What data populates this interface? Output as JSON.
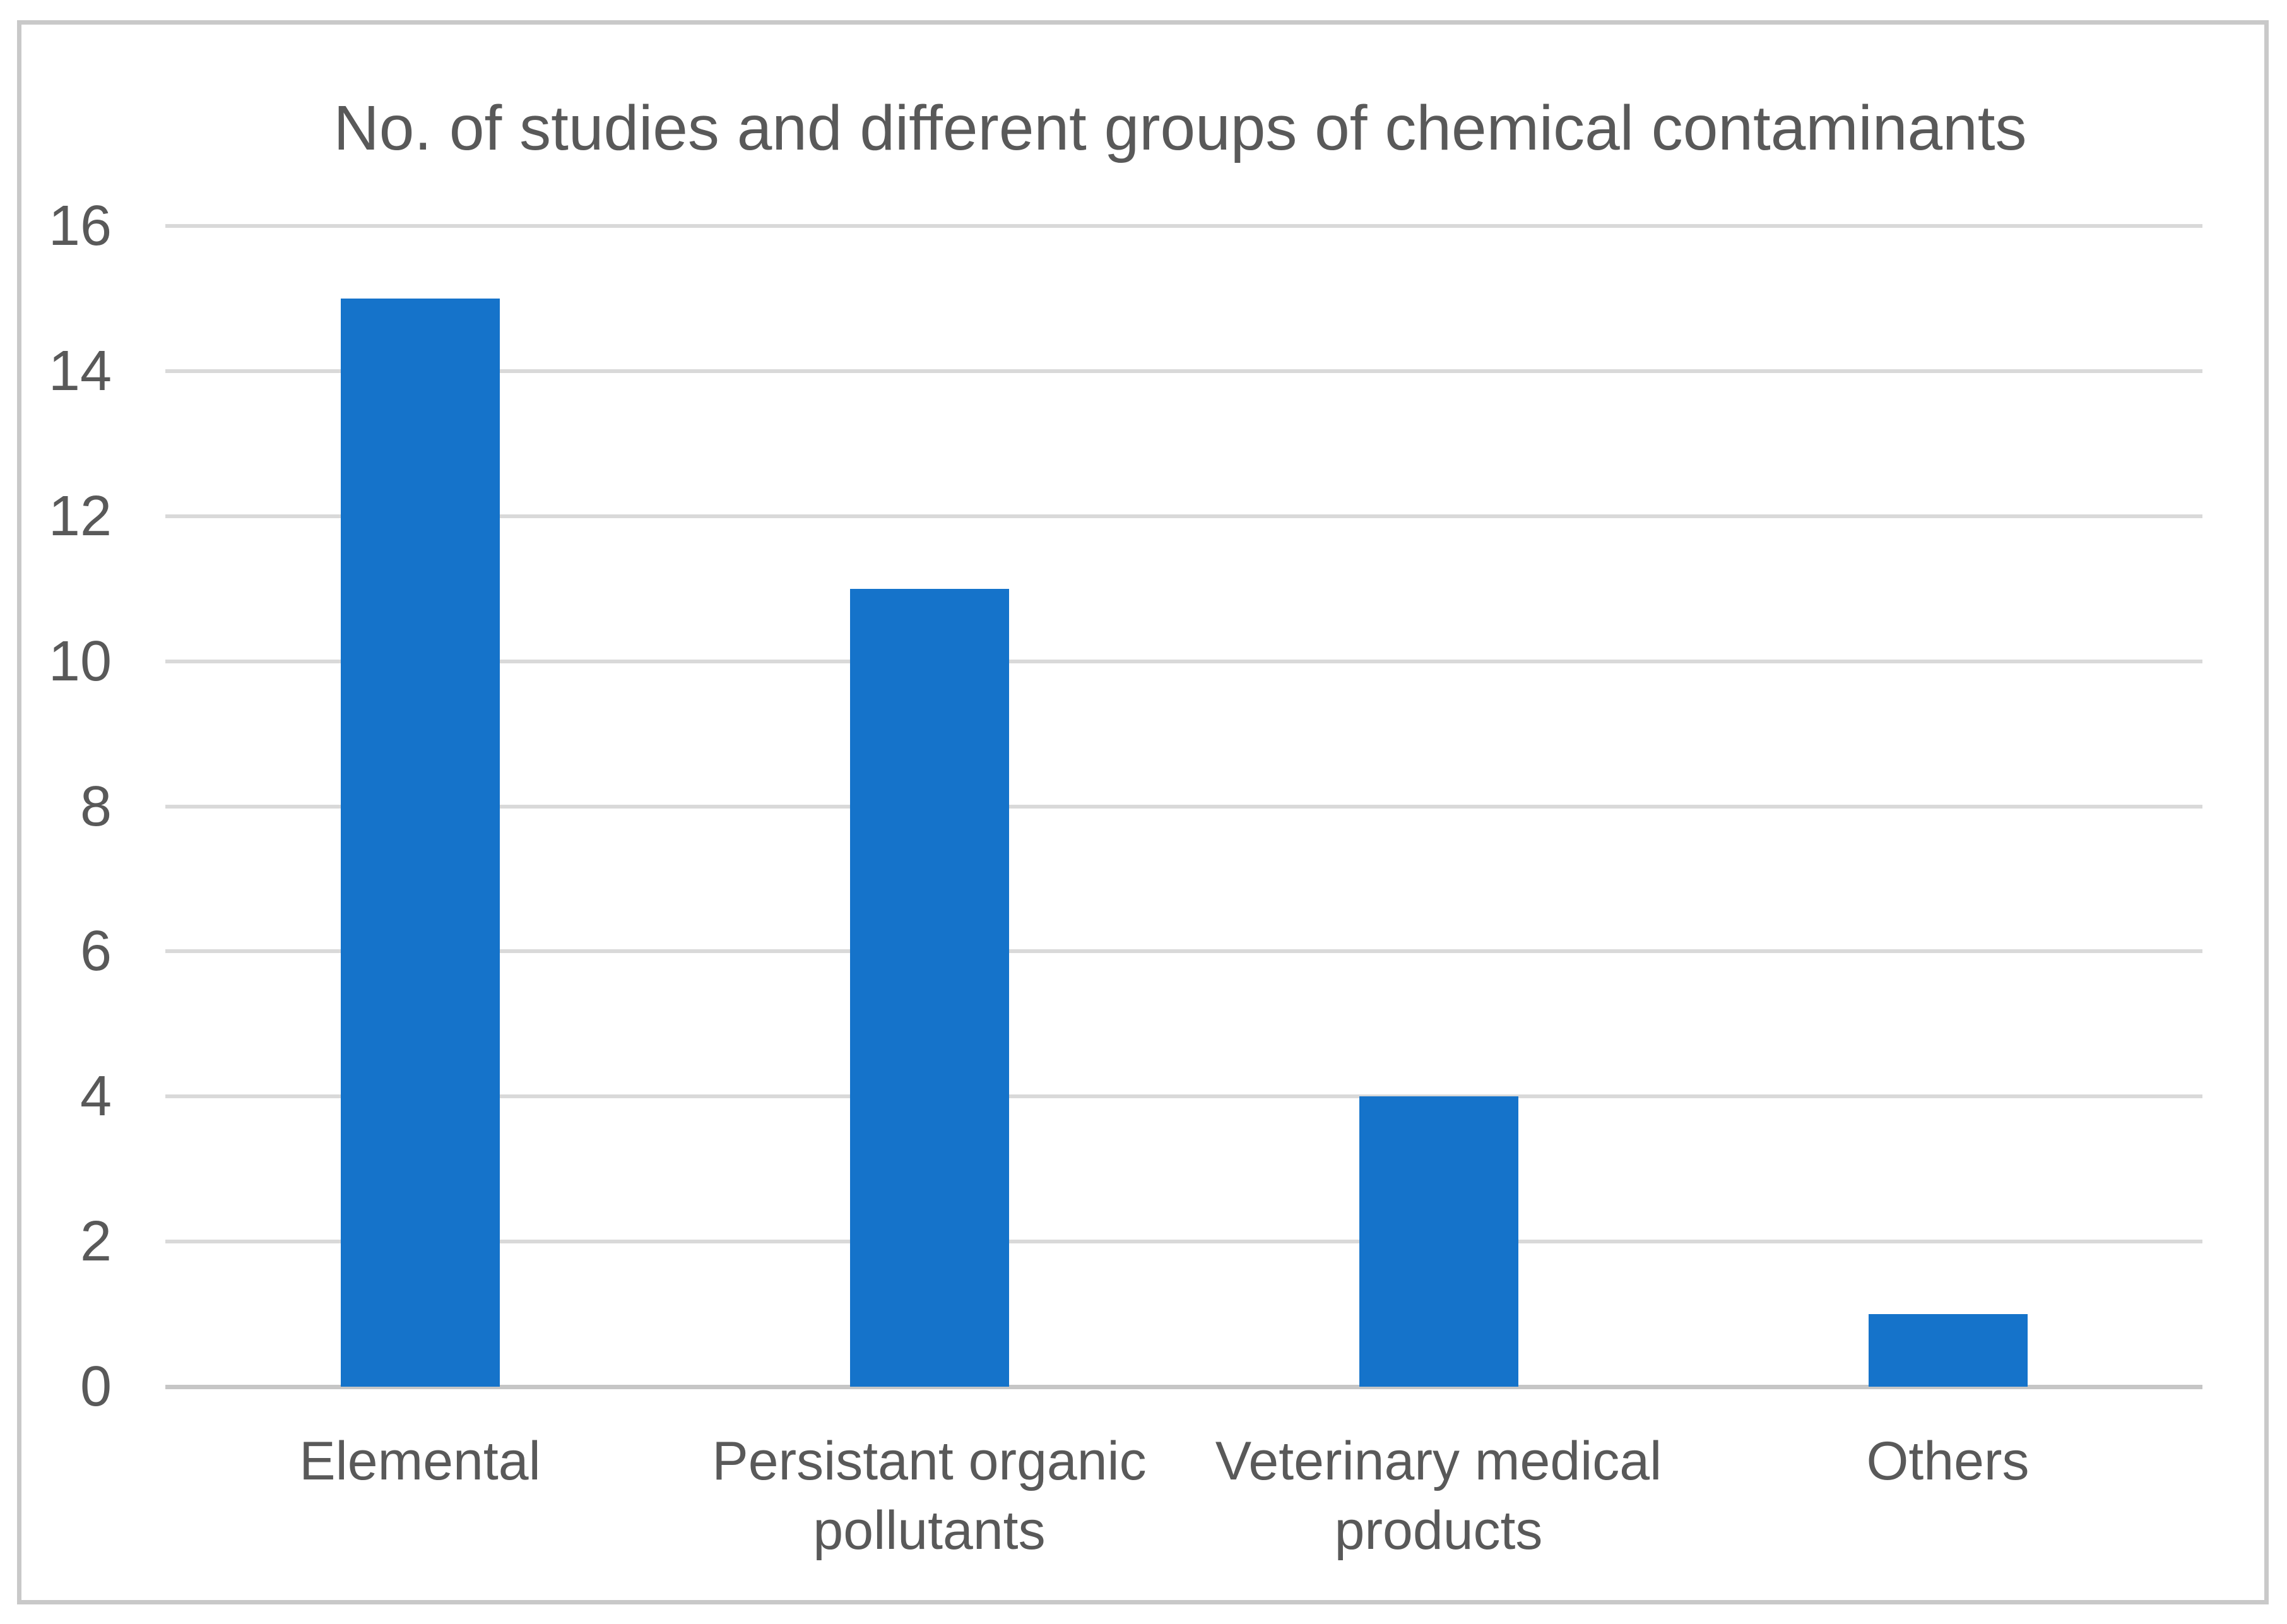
{
  "chart_data": {
    "type": "bar",
    "title": "No. of studies and different groups of chemical contaminants",
    "categories": [
      "Elemental",
      "Persistant organic\npollutants",
      "Veterinary medical\nproducts",
      "Others"
    ],
    "values": [
      15,
      11,
      4,
      1
    ],
    "xlabel": "",
    "ylabel": "",
    "ylim": [
      0,
      16
    ],
    "yticks": [
      0,
      2,
      4,
      6,
      8,
      10,
      12,
      14,
      16
    ],
    "grid": true,
    "legend_position": "none",
    "bar_color": "#1573ca",
    "gridline_color": "#d9d9d9",
    "axis_line_color": "#c6c6c6",
    "text_color": "#595959",
    "border_color": "#c9c9c9",
    "background": "#ffffff"
  }
}
